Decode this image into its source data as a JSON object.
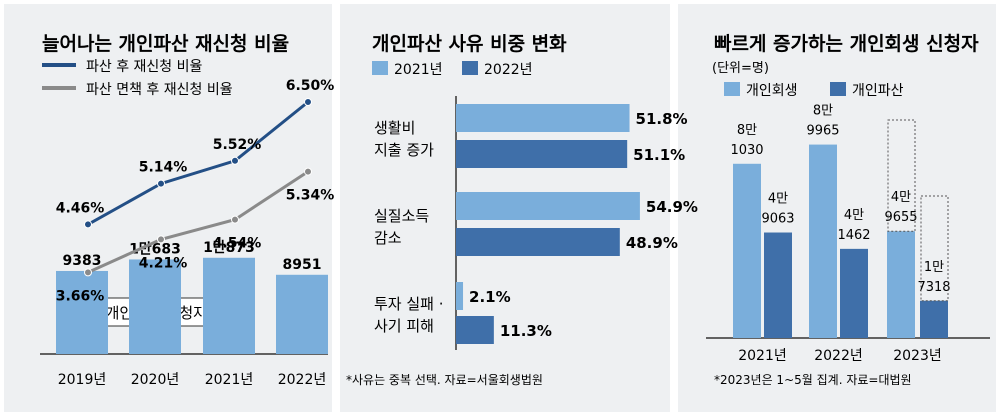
{
  "colors": {
    "light_blue": "#7aaedb",
    "dark_blue": "#3f6fa9",
    "navy_line": "#234f86",
    "gray_line": "#8a8a8a",
    "panel_bg": "#eef0f2",
    "axis": "#333333"
  },
  "chart_data": [
    {
      "type": "bar",
      "title": "늘어나는 개인파산 재신청 비율",
      "categories": [
        "2019년",
        "2020년",
        "2021년",
        "2022년"
      ],
      "bar_series": {
        "name": "개인파산 신청자(명)",
        "values": [
          9383,
          10683,
          10873,
          8951
        ],
        "labels": [
          "9383",
          "1만683",
          "1만873",
          "8951"
        ]
      },
      "line_series": [
        {
          "name": "파산 후 재신청 비율",
          "values": [
            4.46,
            5.14,
            5.52,
            6.5
          ],
          "labels": [
            "4.46%",
            "5.14%",
            "5.52%",
            "6.50%"
          ]
        },
        {
          "name": "파산 면책 후 재신청 비율",
          "values": [
            3.66,
            4.21,
            4.54,
            5.34
          ],
          "labels": [
            "3.66%",
            "4.21%",
            "4.54%",
            "5.34%"
          ]
        }
      ]
    },
    {
      "type": "bar",
      "orientation": "horizontal",
      "title": "개인파산 사유 비중 변화",
      "legend": [
        "2021년",
        "2022년"
      ],
      "categories": [
        [
          "생활비",
          "지출 증가"
        ],
        [
          "실질소득",
          "감소"
        ],
        [
          "투자 실패 ·",
          "사기 피해"
        ]
      ],
      "series": [
        {
          "name": "2021년",
          "values": [
            51.8,
            54.9,
            2.1
          ],
          "labels": [
            "51.8%",
            "54.9%",
            "2.1%"
          ]
        },
        {
          "name": "2022년",
          "values": [
            51.1,
            48.9,
            11.3
          ],
          "labels": [
            "51.1%",
            "48.9%",
            "11.3%"
          ]
        }
      ],
      "note": "*사유는 중복 선택. 자료=서울회생법원"
    },
    {
      "type": "bar",
      "title": "빠르게 증가하는 개인회생 신청자",
      "unit": "(단위=명)",
      "legend": [
        "개인회생",
        "개인파산"
      ],
      "categories": [
        "2021년",
        "2022년",
        "2023년"
      ],
      "series": [
        {
          "name": "개인회생",
          "values": [
            81030,
            89965,
            49655
          ],
          "labels": [
            [
              "8만",
              "1030"
            ],
            [
              "8만",
              "9965"
            ],
            [
              "4만",
              "9655"
            ]
          ]
        },
        {
          "name": "개인파산",
          "values": [
            49063,
            41462,
            17318
          ],
          "labels": [
            [
              "4만",
              "9063"
            ],
            [
              "4만",
              "1462"
            ],
            [
              "1만",
              "7318"
            ]
          ]
        }
      ],
      "note": "*2023년은 1~5월 집계. 자료=대법원"
    }
  ]
}
